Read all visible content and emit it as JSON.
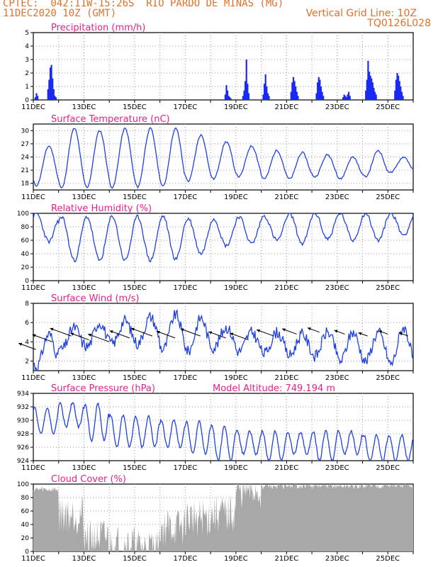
{
  "header": {
    "line1": "CPTEC:  042:11W-15:26S  RIO PARDO DE MINAS (MG)",
    "line2": "11DEC2020 10Z (GMT)",
    "grid_note": "Vertical Grid Line: 10Z",
    "code": "TQ0126L028"
  },
  "colors": {
    "header": "#e0702a",
    "title": "#e8208c",
    "line": "#2040e0",
    "bar": "#1a2af0",
    "cloud": "#a8a8a8",
    "arrow": "#000000"
  },
  "chart_data": [
    {
      "type": "bar",
      "title": "Precipitation (mm/h)",
      "ylim": [
        0,
        5
      ],
      "yticks": [
        0,
        1,
        2,
        3,
        4,
        5
      ],
      "x_start": "11DEC2020 10Z",
      "x_end": "26DEC2020 10Z",
      "x_ticks": [
        "11DEC",
        "13DEC",
        "15DEC",
        "17DEC",
        "19DEC",
        "21DEC",
        "23DEC",
        "25DEC"
      ],
      "events": [
        {
          "day": "11DEC",
          "values": [
            0.2,
            0.5,
            0.3
          ]
        },
        {
          "day": "11DEC-12DEC",
          "values": [
            0.8,
            1.5,
            2.4,
            2.6,
            1.6,
            0.8,
            0.3,
            0.2
          ]
        },
        {
          "day": "18DEC-19DEC",
          "values": [
            0.4,
            1.1,
            0.7,
            0.3,
            0.2,
            0.1
          ]
        },
        {
          "day": "19DEC-20DEC",
          "values": [
            0.3,
            0.7,
            1.4,
            3.0,
            1.2,
            0.5
          ]
        },
        {
          "day": "20DEC-21DEC",
          "values": [
            0.4,
            1.2,
            1.9,
            1.0,
            0.5,
            0.3
          ]
        },
        {
          "day": "21DEC-22DEC",
          "values": [
            0.6,
            1.3,
            1.7,
            1.4,
            1.0,
            0.6,
            0.3
          ]
        },
        {
          "day": "22DEC-23DEC",
          "values": [
            0.5,
            1.3,
            1.7,
            1.5,
            1.0,
            0.6,
            0.3
          ]
        },
        {
          "day": "23DEC-24DEC",
          "values": [
            0.2,
            0.4,
            0.3,
            0.2,
            0.4,
            0.6,
            0.3
          ]
        },
        {
          "day": "24DEC-25DEC",
          "values": [
            0.7,
            1.5,
            2.9,
            2.1,
            1.8,
            1.6,
            1.3,
            0.9,
            0.6,
            0.4
          ]
        },
        {
          "day": "25DEC-26DEC",
          "values": [
            0.7,
            1.5,
            2.0,
            1.8,
            1.4,
            1.0,
            0.6,
            0.3
          ]
        }
      ]
    },
    {
      "type": "line",
      "title": "Surface Temperature (nC)",
      "ylim": [
        16.5,
        31.5
      ],
      "yticks": [
        18,
        21,
        24,
        27,
        30
      ],
      "daily_min": [
        17.5,
        16.9,
        17.1,
        17.0,
        17.2,
        17.3,
        18.5,
        19.0,
        19.5,
        19.0,
        19.0,
        19.5,
        19.0,
        19.5,
        20.5,
        21.0
      ],
      "daily_max": [
        26.5,
        30.5,
        30.0,
        30.5,
        30.5,
        30.5,
        29.0,
        27.5,
        26.5,
        25.5,
        25.0,
        24.5,
        24.0,
        25.5,
        24.0,
        23.5
      ]
    },
    {
      "type": "line",
      "title": "Relative Humidity (%)",
      "ylim": [
        0,
        100
      ],
      "yticks": [
        0,
        20,
        40,
        60,
        80,
        100
      ],
      "daily_min": [
        58,
        30,
        30,
        30,
        30,
        32,
        40,
        52,
        55,
        60,
        55,
        62,
        60,
        60,
        68,
        78
      ],
      "daily_max": [
        100,
        95,
        95,
        96,
        95,
        96,
        92,
        92,
        95,
        96,
        100,
        100,
        100,
        100,
        100,
        100
      ]
    },
    {
      "type": "line",
      "title": "Surface Wind (m/s)",
      "ylim": [
        1,
        8
      ],
      "yticks": [
        2,
        4,
        6,
        8
      ],
      "speed_min": [
        1.4,
        3.2,
        3.5,
        3.8,
        3.8,
        3.2,
        3.0,
        3.4,
        3.0,
        2.8,
        2.6,
        2.5,
        2.0,
        2.0,
        1.7,
        2.0
      ],
      "speed_max": [
        4.8,
        5.5,
        6.0,
        6.2,
        6.6,
        6.8,
        6.5,
        5.5,
        5.0,
        5.0,
        4.8,
        5.0,
        5.0,
        5.0,
        5.5,
        6.0
      ],
      "arrow_direction": "from east-northeast"
    },
    {
      "type": "line",
      "title": "Surface Pressure (hPa)",
      "ylim": [
        924,
        934
      ],
      "yticks": [
        924,
        926,
        928,
        930,
        932,
        934
      ],
      "note": "Model Altitude: 749.194 m",
      "daily_min": [
        928.0,
        929.0,
        927.0,
        926.0,
        926.0,
        926.0,
        925.0,
        924.0,
        925.0,
        924.0,
        925.0,
        924.0,
        925.0,
        924.0,
        924.0,
        925.0
      ],
      "daily_max": [
        931.8,
        932.6,
        932.4,
        930.8,
        930.6,
        930.0,
        929.8,
        929.2,
        928.4,
        928.4,
        928.2,
        928.4,
        928.4,
        927.8,
        927.8,
        926.8
      ]
    },
    {
      "type": "area",
      "title": "Cloud Cover (%)",
      "ylim": [
        0,
        100
      ],
      "yticks": [
        0,
        20,
        40,
        60,
        80,
        100
      ],
      "daily_mean": [
        92,
        55,
        20,
        10,
        5,
        35,
        50,
        55,
        90,
        97,
        98,
        97,
        97,
        98,
        98,
        98
      ]
    }
  ]
}
